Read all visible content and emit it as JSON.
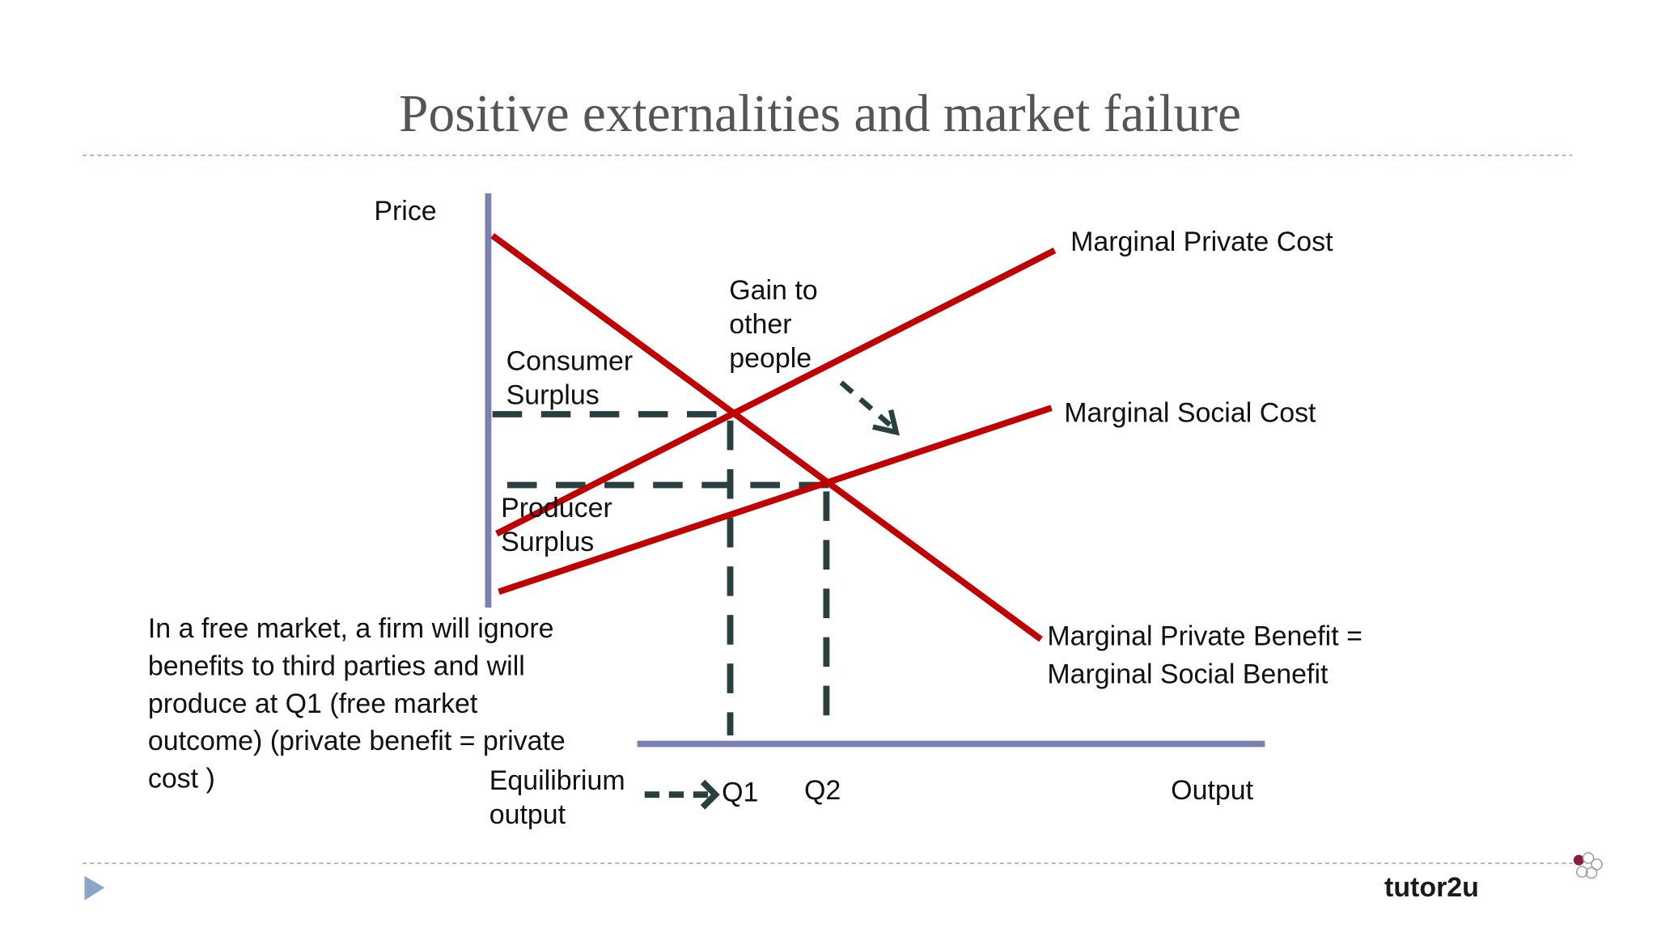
{
  "header": {
    "title": "Positive externalities and market failure"
  },
  "diagram": {
    "axes": {
      "y_label": "Price",
      "x_label": "Output"
    },
    "curves": {
      "mpc": "Marginal  Private Cost",
      "msc": "Marginal Social Cost",
      "mpb": [
        "Marginal Private Benefit =",
        "Marginal Social Benefit"
      ]
    },
    "areas": {
      "consumer_surplus": [
        "Consumer",
        "Surplus"
      ],
      "producer_surplus": [
        "Producer",
        "Surplus"
      ],
      "gain": [
        "Gain to",
        "other",
        "people"
      ]
    },
    "quantities": {
      "q1": "Q1",
      "q2": "Q2"
    },
    "equilibrium": [
      "Equilibrium",
      "output"
    ]
  },
  "note": [
    "In a free market, a firm will ignore",
    "benefits to third parties and will",
    "produce at Q1 (free market",
    "outcome) (private benefit = private",
    "cost )"
  ],
  "footer": {
    "logo": "tutor2u"
  }
}
